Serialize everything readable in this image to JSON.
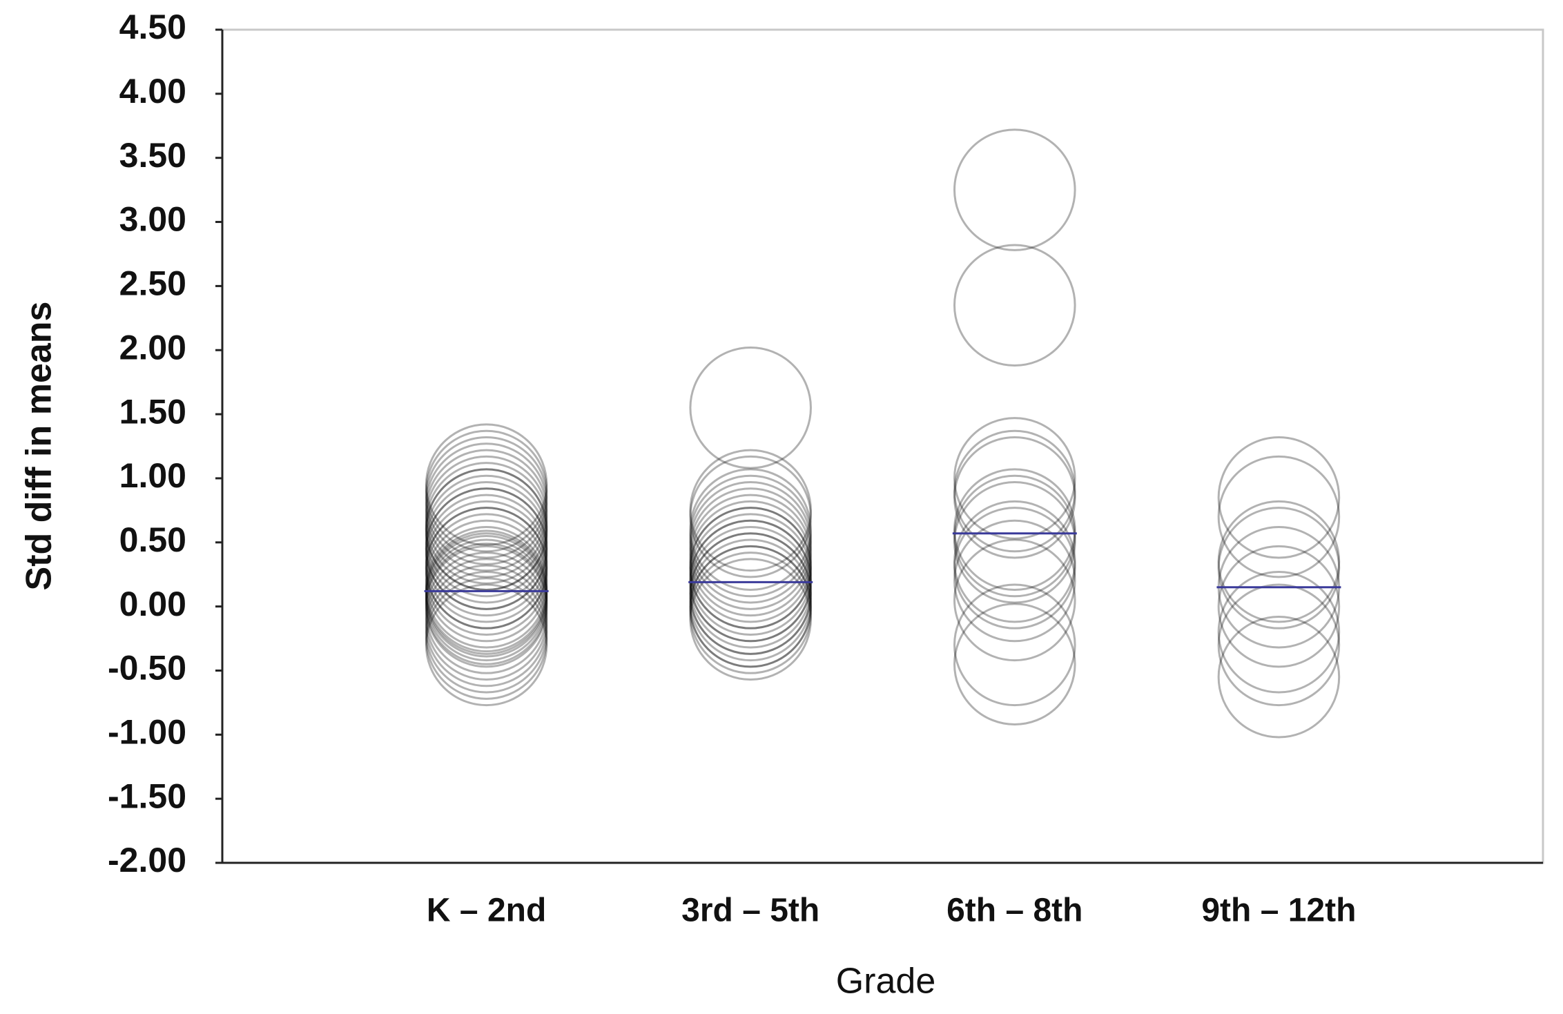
{
  "chart_data": {
    "type": "scatter",
    "y_label": "Std diff in means",
    "x_label": "Grade",
    "categories": [
      "K – 2nd",
      "3rd – 5th",
      "6th – 8th",
      "9th – 12th"
    ],
    "groups": [
      {
        "values": [
          0.95,
          0.9,
          0.85,
          0.8,
          0.7,
          0.65,
          0.6,
          0.55,
          0.5,
          0.45,
          0.4,
          0.35,
          0.3,
          0.25,
          0.2,
          0.15,
          0.1,
          0.05,
          0.0,
          -0.05,
          -0.1,
          -0.15,
          -0.2,
          -0.25,
          -0.3,
          0.12,
          0.08,
          0.02,
          0.3,
          0.45,
          0.6,
          0.75
        ],
        "mean": 0.12,
        "mean_color": "#3a3a9a"
      },
      {
        "values": [
          1.55,
          0.75,
          0.7,
          0.6,
          0.55,
          0.5,
          0.45,
          0.4,
          0.35,
          0.3,
          0.25,
          0.2,
          0.15,
          0.1,
          0.05,
          0.0,
          -0.05,
          -0.1,
          0.2,
          0.1,
          0.3,
          0.0
        ],
        "mean": 0.19,
        "mean_color": "#3a3a9a"
      },
      {
        "values": [
          3.25,
          2.35,
          1.0,
          0.9,
          0.85,
          0.6,
          0.55,
          0.5,
          0.35,
          0.3,
          0.2,
          0.05,
          -0.3,
          -0.45
        ],
        "mean": 0.57,
        "mean_color": "#3a3a9a"
      },
      {
        "values": [
          0.85,
          0.7,
          0.35,
          0.3,
          0.15,
          0.0,
          -0.2,
          -0.3,
          -0.55
        ],
        "mean": 0.15,
        "mean_color": "#3a3a9a"
      }
    ],
    "color": "#000000",
    "ylim": [
      -2,
      4.5
    ],
    "yticks": [
      {
        "value": 4.5,
        "label": "4.50"
      },
      {
        "value": 4,
        "label": "4.00"
      },
      {
        "value": 3.5,
        "label": "3.50"
      },
      {
        "value": 3,
        "label": "3.00"
      },
      {
        "value": 2.5,
        "label": "2.50"
      },
      {
        "value": 2,
        "label": "2.00"
      },
      {
        "value": 1.5,
        "label": "1.50"
      },
      {
        "value": 1,
        "label": "1.00"
      },
      {
        "value": 0.5,
        "label": "0.50"
      },
      {
        "value": 0,
        "label": "0.00"
      },
      {
        "value": -0.5,
        "label": "-0.50"
      },
      {
        "value": -1,
        "label": "-1.00"
      },
      {
        "value": -1.5,
        "label": "-1.50"
      },
      {
        "value": -2,
        "label": "-2.00"
      }
    ],
    "grid": false
  }
}
